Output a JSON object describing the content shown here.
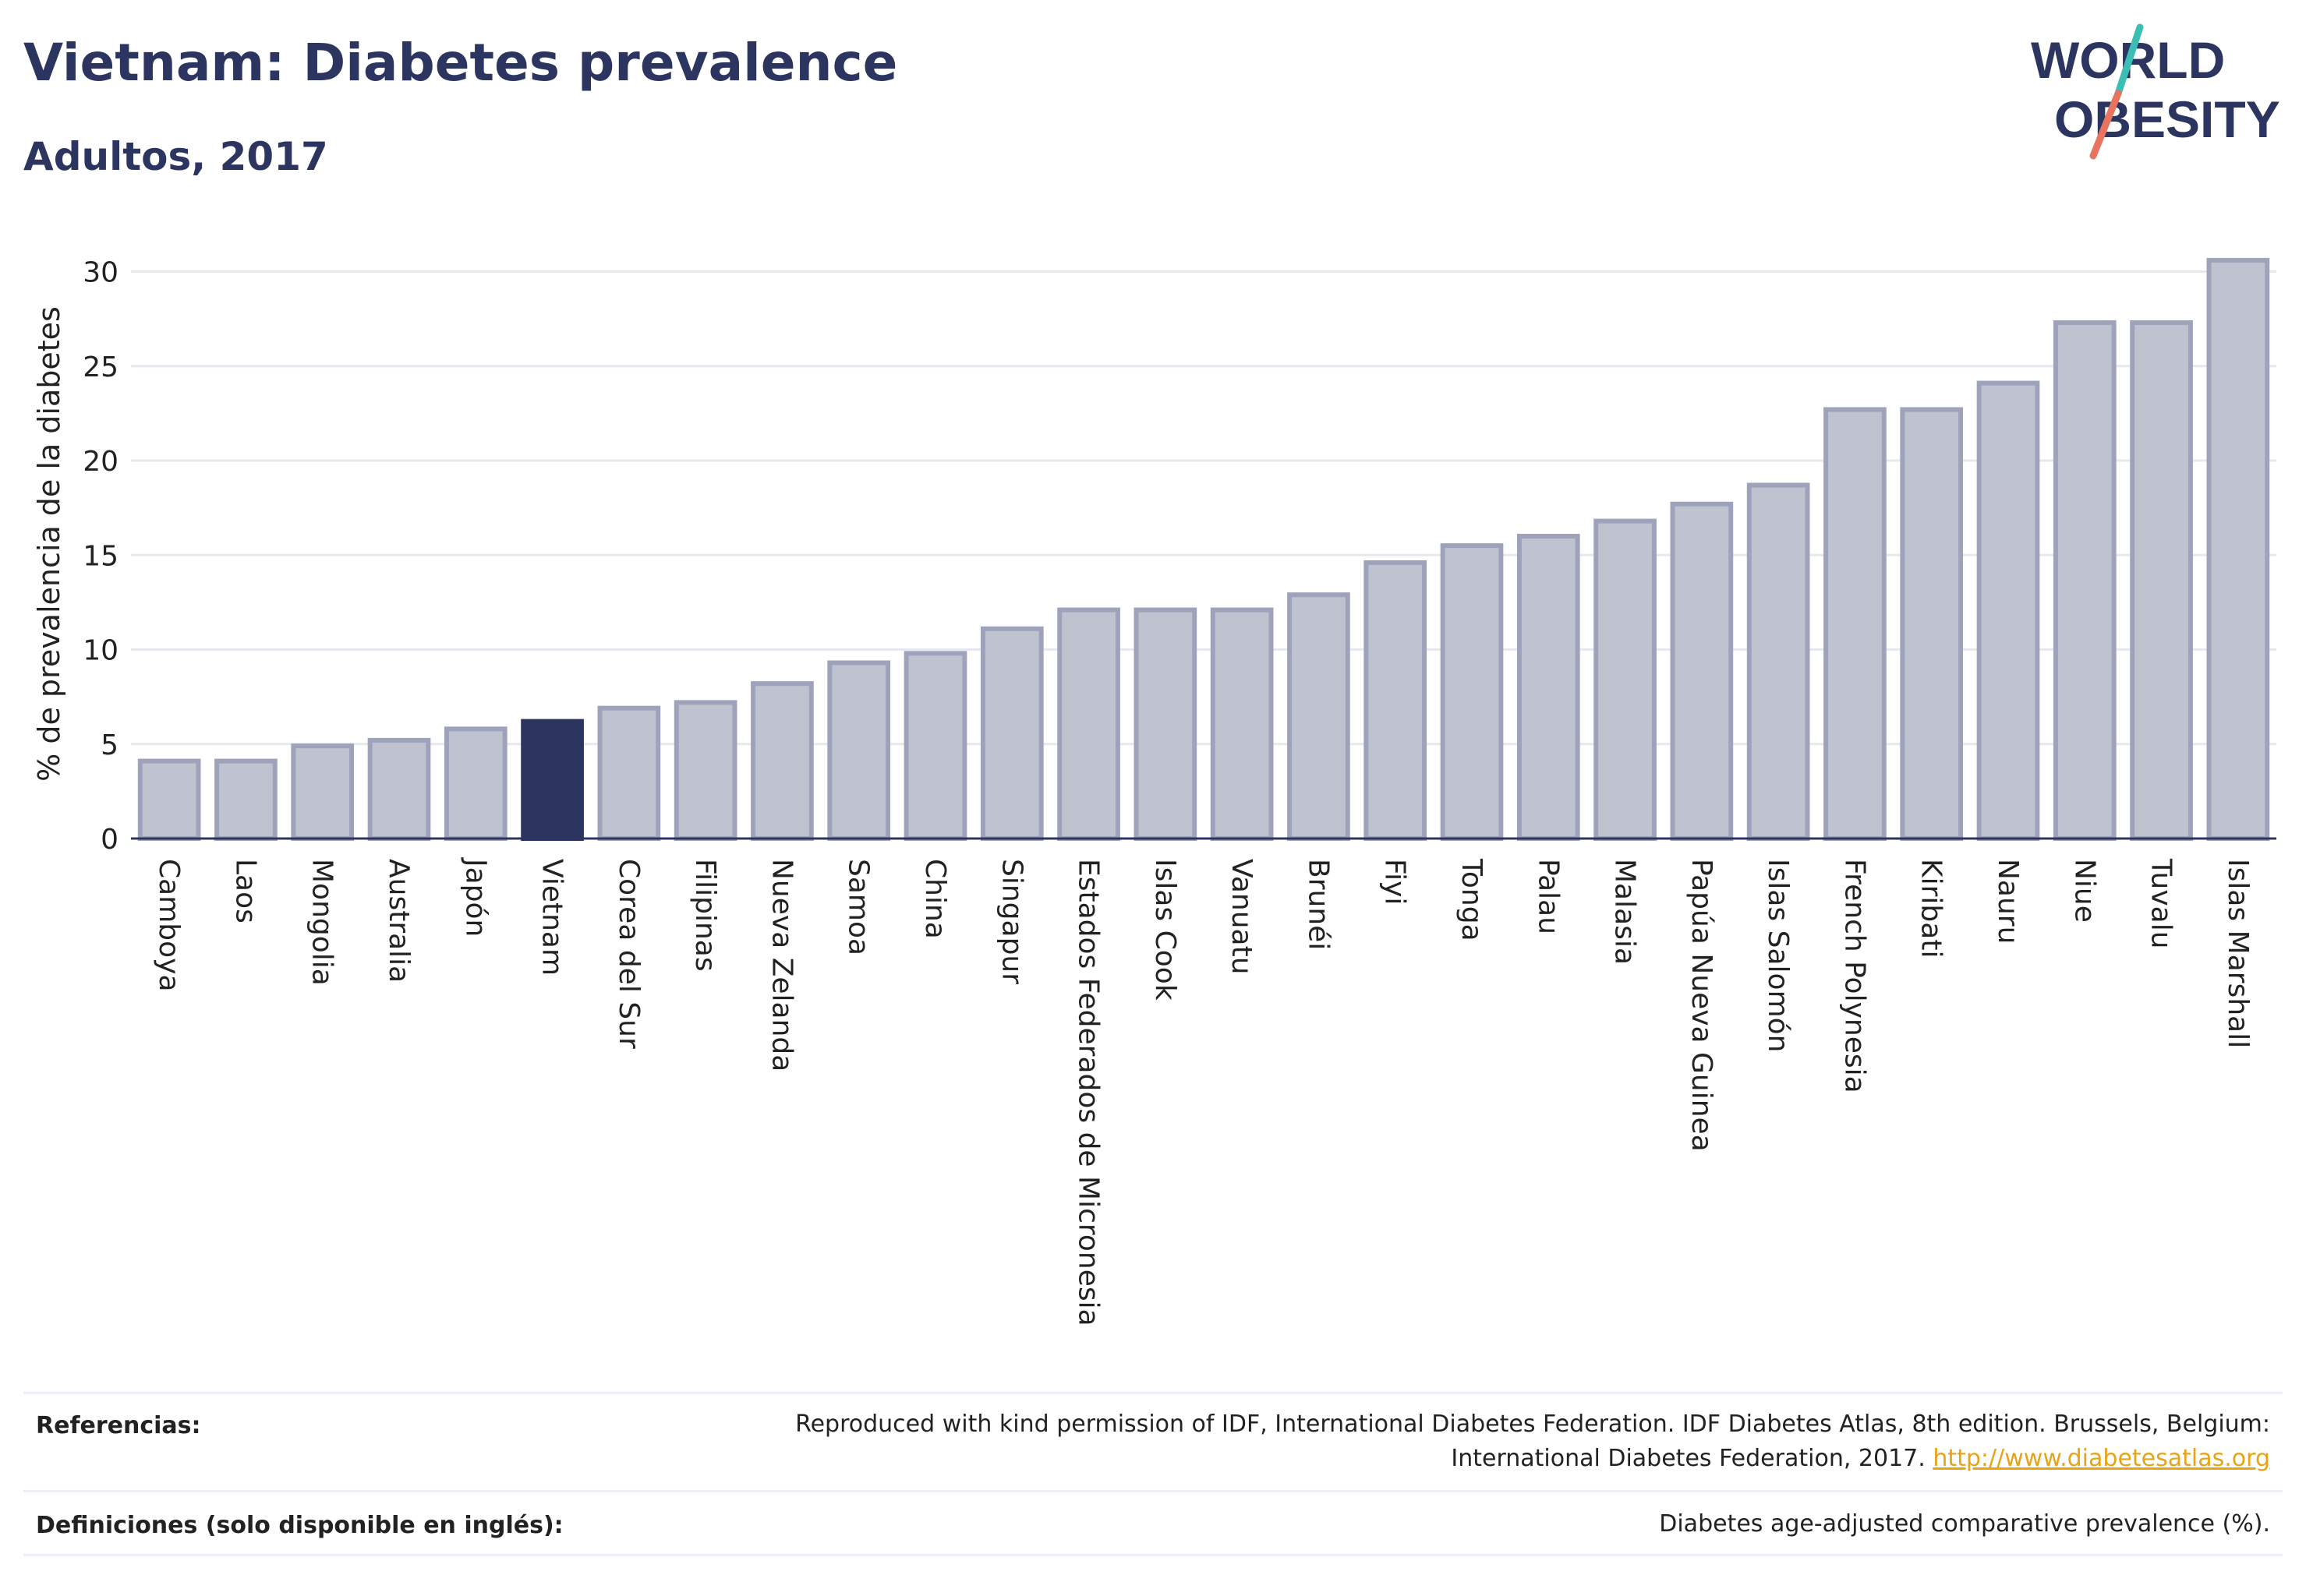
{
  "header": {
    "title": "Vietnam: Diabetes prevalence",
    "subtitle": "Adultos, 2017"
  },
  "logo": {
    "line1": "WORLD",
    "line2": "OBESITY"
  },
  "chart_data": {
    "type": "bar",
    "ylabel": "% de prevalencia de la diabetes",
    "ylim": [
      0,
      32
    ],
    "yticks": [
      0,
      5,
      10,
      15,
      20,
      25,
      30
    ],
    "grid": true,
    "highlight": "Vietnam",
    "colors": {
      "bar": "#bfc2cf",
      "bar_border": "#9ea3bb",
      "highlight": "#2b3560",
      "grid": "#e6e8ef",
      "axis": "#2b3560"
    },
    "categories": [
      "Camboya",
      "Laos",
      "Mongolia",
      "Australia",
      "Japón",
      "Vietnam",
      "Corea del Sur",
      "Filipinas",
      "Nueva Zelanda",
      "Samoa",
      "China",
      "Singapur",
      "Estados Federados de Micronesia",
      "Islas Cook",
      "Vanuatu",
      "Brunéi",
      "Fiyi",
      "Tonga",
      "Palau",
      "Malasia",
      "Papúa Nueva Guinea",
      "Islas Salomón",
      "French Polynesia",
      "Kiribati",
      "Nauru",
      "Niue",
      "Tuvalu",
      "Islas Marshall"
    ],
    "values": [
      4.1,
      4.1,
      4.9,
      5.2,
      5.8,
      6.2,
      6.9,
      7.2,
      8.2,
      9.3,
      9.8,
      11.1,
      12.1,
      12.1,
      12.1,
      12.9,
      14.6,
      15.5,
      16.0,
      16.8,
      17.7,
      18.7,
      22.7,
      22.7,
      24.1,
      27.3,
      27.3,
      30.6
    ]
  },
  "footer": {
    "references_label": "Referencias:",
    "references_line1": "Reproduced with kind permission of IDF, International Diabetes Federation. IDF Diabetes Atlas, 8th edition. Brussels, Belgium:",
    "references_line2": "International Diabetes Federation, 2017.",
    "references_link": "http://www.diabetesatlas.org",
    "definitions_label": "Definiciones (solo disponible en inglés):",
    "definitions_text": "Diabetes age-adjusted comparative prevalence (%)."
  }
}
